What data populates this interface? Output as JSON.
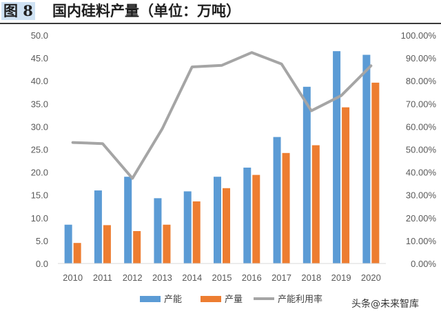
{
  "header": {
    "figure_label": "图 8",
    "figure_title": "国内硅料产量（单位：万吨）"
  },
  "watermark": "头条@未来智库",
  "colors": {
    "capacity": "#5b9bd5",
    "output": "#ed7d31",
    "utilization": "#a5a5a5"
  },
  "chart_data": {
    "type": "bar",
    "categories": [
      "2010",
      "2011",
      "2012",
      "2013",
      "2014",
      "2015",
      "2016",
      "2017",
      "2018",
      "2019",
      "2020"
    ],
    "series": [
      {
        "name": "产能",
        "type": "bar",
        "axis": "left",
        "values": [
          8.5,
          16.0,
          19.0,
          14.3,
          15.8,
          19.0,
          21.0,
          27.7,
          38.7,
          46.5,
          45.7
        ]
      },
      {
        "name": "产量",
        "type": "bar",
        "axis": "left",
        "values": [
          4.5,
          8.4,
          7.1,
          8.5,
          13.6,
          16.5,
          19.4,
          24.2,
          25.9,
          34.2,
          39.6
        ]
      },
      {
        "name": "产能利用率",
        "type": "line",
        "axis": "right",
        "values": [
          0.53,
          0.525,
          0.373,
          0.59,
          0.861,
          0.868,
          0.924,
          0.874,
          0.669,
          0.735,
          0.866
        ]
      }
    ],
    "y_left": {
      "min": 0,
      "max": 50,
      "step": 5,
      "ticks": [
        "0.0",
        "5.0",
        "10.0",
        "15.0",
        "20.0",
        "25.0",
        "30.0",
        "35.0",
        "40.0",
        "45.0",
        "50.0"
      ]
    },
    "y_right": {
      "min": 0,
      "max": 1,
      "step": 0.1,
      "ticks": [
        "0.00%",
        "10.00%",
        "20.00%",
        "30.00%",
        "40.00%",
        "50.00%",
        "60.00%",
        "70.00%",
        "80.00%",
        "90.00%",
        "100.00%"
      ]
    },
    "grid": false,
    "legend_position": "bottom"
  }
}
